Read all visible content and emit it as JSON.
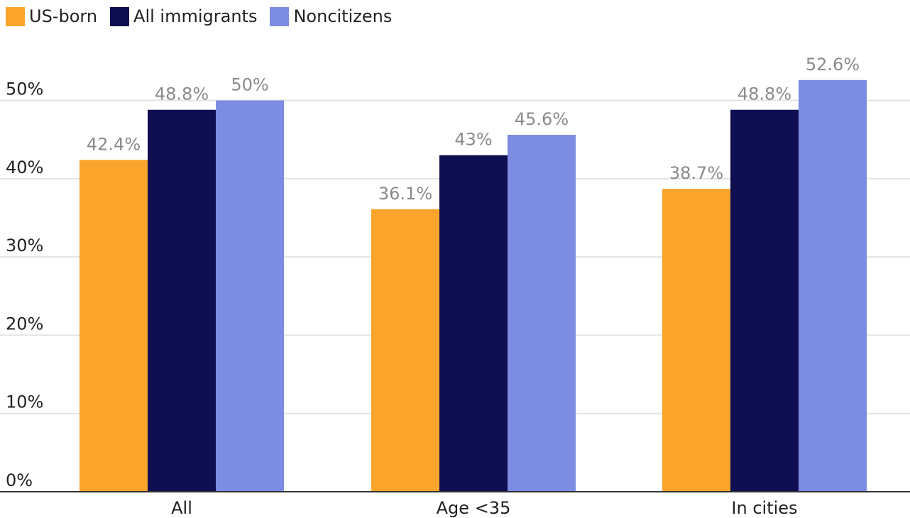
{
  "chart_data": {
    "type": "bar",
    "categories": [
      "All",
      "Age <35",
      "In cities"
    ],
    "series": [
      {
        "name": "US-born",
        "values": [
          42.4,
          36.1,
          38.7
        ],
        "labels": [
          "42.4%",
          "36.1%",
          "38.7%"
        ],
        "color": "#fba42c"
      },
      {
        "name": "All immigrants",
        "values": [
          48.8,
          43,
          48.8
        ],
        "labels": [
          "48.8%",
          "43%",
          "48.8%"
        ],
        "color": "#0e0e50"
      },
      {
        "name": "Noncitizens",
        "values": [
          50,
          45.6,
          52.6
        ],
        "labels": [
          "50%",
          "45.6%",
          "52.6%"
        ],
        "color": "#7b8ce2"
      }
    ],
    "y_ticks": [
      0,
      10,
      20,
      30,
      40,
      50
    ],
    "y_tick_labels": [
      "0%",
      "10%",
      "20%",
      "30%",
      "40%",
      "50%"
    ],
    "ylim": [
      0,
      55
    ],
    "grid": true,
    "legend_position": "top-left",
    "colors": {
      "grid": "#e3e3e3",
      "axis": "#333333"
    }
  }
}
